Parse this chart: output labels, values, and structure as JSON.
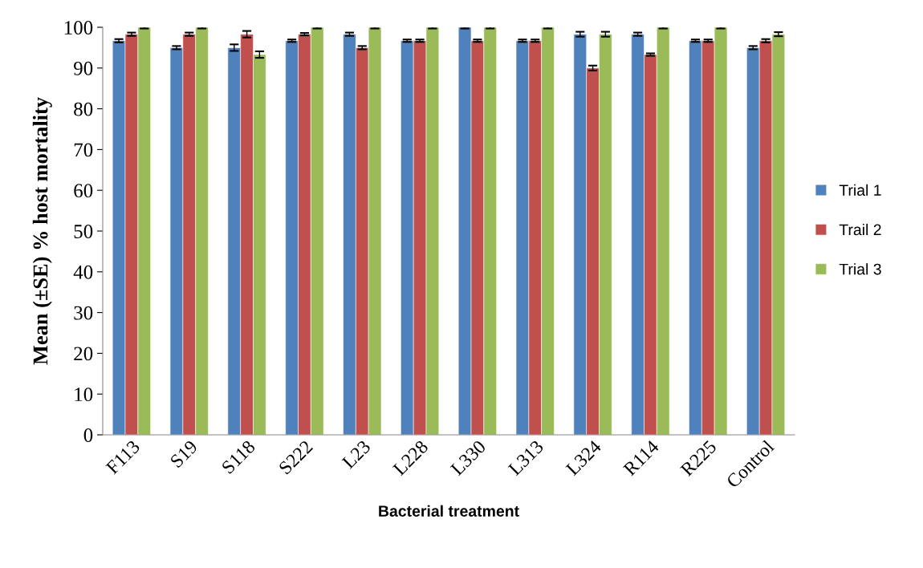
{
  "chart_data": {
    "type": "bar",
    "xlabel": "Bacterial treatment",
    "ylabel": "Mean (±SE) % host mortality",
    "categories": [
      "F113",
      "S19",
      "S118",
      "S222",
      "L23",
      "L228",
      "L330",
      "L313",
      "L324",
      "R114",
      "R225",
      "Control"
    ],
    "series": [
      {
        "name": "Trial 1",
        "color": "#4f81bd",
        "values": [
          96.7,
          95,
          95,
          96.7,
          98.3,
          96.7,
          100,
          96.7,
          98.3,
          98.3,
          96.7,
          95
        ],
        "errors": [
          0.4,
          0.4,
          0.8,
          0.3,
          0.4,
          0.3,
          0.3,
          0.3,
          0.6,
          0.4,
          0.3,
          0.4
        ]
      },
      {
        "name": "Trail 2",
        "color": "#c0504d",
        "values": [
          98.3,
          98.3,
          98.3,
          98.3,
          95,
          96.7,
          96.7,
          96.7,
          90,
          93.3,
          96.7,
          96.7
        ],
        "errors": [
          0.4,
          0.4,
          0.8,
          0.3,
          0.4,
          0.3,
          0.3,
          0.3,
          0.6,
          0.3,
          0.3,
          0.4
        ]
      },
      {
        "name": "Trial 3",
        "color": "#9bbb59",
        "values": [
          100,
          100,
          93.3,
          100,
          100,
          100,
          100,
          100,
          98.3,
          100,
          100,
          98.3
        ],
        "errors": [
          0.3,
          0.3,
          0.8,
          0.3,
          0.3,
          0.3,
          0.3,
          0.3,
          0.6,
          0.3,
          0.3,
          0.5
        ]
      }
    ],
    "ylim": [
      0,
      100
    ],
    "yticks": [
      0,
      10,
      20,
      30,
      40,
      50,
      60,
      70,
      80,
      90,
      100
    ],
    "grid": false,
    "legend": "right"
  }
}
